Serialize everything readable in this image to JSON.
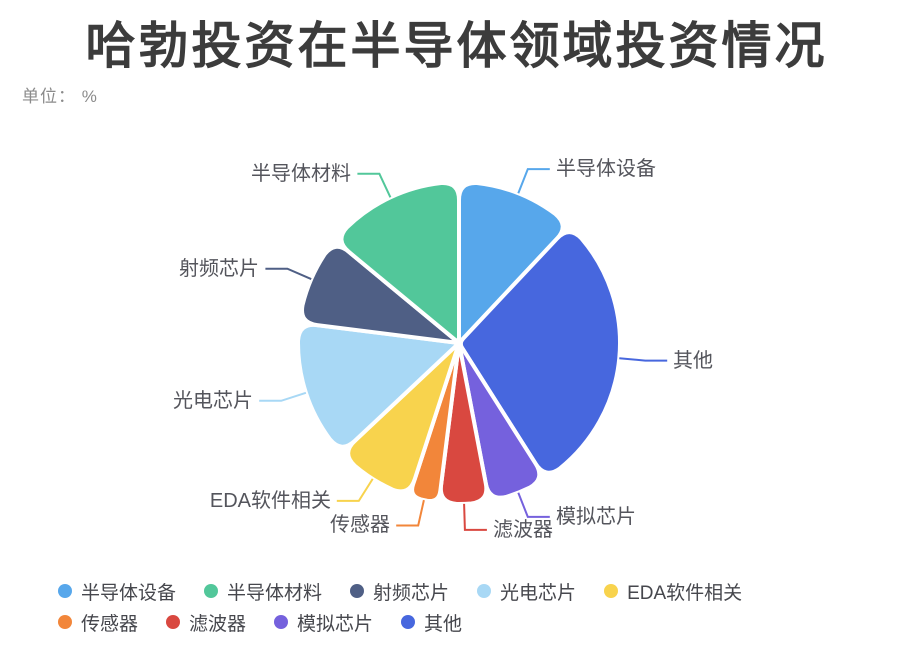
{
  "header": {
    "title": "哈勃投资在半导体领域投资情况",
    "unit_label": "单位： %"
  },
  "chart_data": {
    "type": "pie",
    "title": "哈勃投资在半导体领域投资情况",
    "unit": "%",
    "start_angle_deg": 0,
    "direction": "clockwise",
    "series": [
      {
        "name": "半导体设备",
        "value": 12,
        "color": "#57a7eb"
      },
      {
        "name": "其他",
        "value": 29,
        "color": "#4767de"
      },
      {
        "name": "模拟芯片",
        "value": 6,
        "color": "#7561dd"
      },
      {
        "name": "滤波器",
        "value": 5,
        "color": "#d94840"
      },
      {
        "name": "传感器",
        "value": 3,
        "color": "#f2863a"
      },
      {
        "name": "EDA软件相关",
        "value": 8,
        "color": "#f8d34d"
      },
      {
        "name": "光电芯片",
        "value": 14,
        "color": "#a8d8f5"
      },
      {
        "name": "射频芯片",
        "value": 9,
        "color": "#4f5f85"
      },
      {
        "name": "半导体材料",
        "value": 14,
        "color": "#52c79a"
      }
    ],
    "legend": {
      "position": "bottom",
      "rows": [
        [
          "半导体设备",
          "半导体材料",
          "射频芯片",
          "光电芯片",
          "EDA软件相关"
        ],
        [
          "传感器",
          "滤波器",
          "模拟芯片",
          "其他"
        ]
      ]
    },
    "colors": {
      "title_text": "#3c3c3c",
      "unit_text": "#8b8b8b",
      "label_text": "#54555c",
      "legend_text": "#46474d",
      "background": "#ffffff",
      "slice_border": "#ffffff"
    }
  }
}
